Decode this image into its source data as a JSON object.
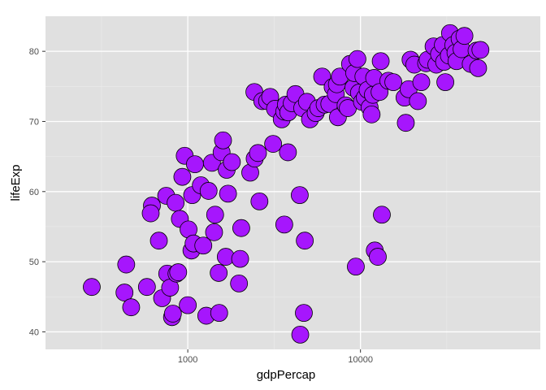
{
  "chart_data": {
    "type": "scatter",
    "title": "",
    "xlabel": "gdpPercap",
    "ylabel": "lifeExp",
    "x_scale": "log10",
    "xlim": [
      150,
      110000
    ],
    "ylim": [
      37.5,
      85
    ],
    "x_ticks": [
      1000,
      10000
    ],
    "x_tick_labels": [
      "1000",
      "10000"
    ],
    "y_ticks": [
      40,
      50,
      60,
      70,
      80
    ],
    "y_tick_labels": [
      "40",
      "50",
      "60",
      "70",
      "80"
    ],
    "grid": true,
    "legend": "none",
    "colors": {
      "panel_background": "#e0e0e0",
      "grid_major": "#ffffff",
      "grid_minor": "#ebebeb",
      "point_fill": "#a616fd",
      "point_stroke": "#000000"
    },
    "points": [
      [
        278,
        46.4
      ],
      [
        430,
        45.6
      ],
      [
        470,
        43.5
      ],
      [
        440,
        49.6
      ],
      [
        580,
        46.4
      ],
      [
        620,
        58.0
      ],
      [
        610,
        56.9
      ],
      [
        680,
        53.0
      ],
      [
        710,
        44.8
      ],
      [
        750,
        59.4
      ],
      [
        760,
        48.3
      ],
      [
        790,
        46.3
      ],
      [
        810,
        42.1
      ],
      [
        820,
        42.6
      ],
      [
        860,
        48.3
      ],
      [
        880,
        48.5
      ],
      [
        850,
        58.4
      ],
      [
        900,
        56.1
      ],
      [
        930,
        62.1
      ],
      [
        960,
        65.1
      ],
      [
        1000,
        43.8
      ],
      [
        1010,
        54.6
      ],
      [
        1050,
        51.6
      ],
      [
        1080,
        52.6
      ],
      [
        1060,
        59.5
      ],
      [
        1100,
        63.9
      ],
      [
        1190,
        60.9
      ],
      [
        1230,
        52.3
      ],
      [
        1280,
        42.3
      ],
      [
        1320,
        60.1
      ],
      [
        1380,
        64.1
      ],
      [
        1420,
        54.2
      ],
      [
        1440,
        56.7
      ],
      [
        1510,
        48.4
      ],
      [
        1520,
        42.7
      ],
      [
        1570,
        65.6
      ],
      [
        1600,
        67.3
      ],
      [
        1660,
        50.7
      ],
      [
        1680,
        63.1
      ],
      [
        1710,
        59.7
      ],
      [
        1800,
        64.2
      ],
      [
        1980,
        46.9
      ],
      [
        2010,
        50.4
      ],
      [
        2040,
        54.8
      ],
      [
        2300,
        62.7
      ],
      [
        2440,
        64.7
      ],
      [
        2550,
        65.5
      ],
      [
        2600,
        58.6
      ],
      [
        2430,
        74.2
      ],
      [
        2700,
        72.9
      ],
      [
        2880,
        72.9
      ],
      [
        3000,
        73.5
      ],
      [
        3120,
        66.8
      ],
      [
        3200,
        71.8
      ],
      [
        3500,
        70.3
      ],
      [
        3620,
        55.3
      ],
      [
        3620,
        71.4
      ],
      [
        3700,
        72.4
      ],
      [
        3820,
        71.3
      ],
      [
        3800,
        65.6
      ],
      [
        4000,
        72.6
      ],
      [
        4200,
        73.9
      ],
      [
        4450,
        59.5
      ],
      [
        4480,
        39.6
      ],
      [
        4600,
        71.9
      ],
      [
        4700,
        42.7
      ],
      [
        4760,
        53.0
      ],
      [
        4900,
        72.8
      ],
      [
        5100,
        70.3
      ],
      [
        5500,
        71.2
      ],
      [
        5700,
        71.9
      ],
      [
        6000,
        76.4
      ],
      [
        6200,
        72.4
      ],
      [
        6600,
        72.5
      ],
      [
        6900,
        74.9
      ],
      [
        7200,
        73.9
      ],
      [
        7300,
        75.3
      ],
      [
        7400,
        70.6
      ],
      [
        7600,
        76.4
      ],
      [
        8200,
        72.3
      ],
      [
        8450,
        71.9
      ],
      [
        8700,
        78.2
      ],
      [
        9100,
        74.8
      ],
      [
        9200,
        76.9
      ],
      [
        9400,
        49.3
      ],
      [
        9600,
        78.9
      ],
      [
        9800,
        74.1
      ],
      [
        10200,
        72.8
      ],
      [
        10400,
        76.4
      ],
      [
        10600,
        73.4
      ],
      [
        11000,
        74.5
      ],
      [
        11300,
        72.0
      ],
      [
        11600,
        71.0
      ],
      [
        11800,
        73.8
      ],
      [
        12000,
        76.2
      ],
      [
        12100,
        51.6
      ],
      [
        12600,
        50.7
      ],
      [
        12900,
        74.2
      ],
      [
        13100,
        78.6
      ],
      [
        13300,
        56.7
      ],
      [
        14500,
        75.8
      ],
      [
        15500,
        75.6
      ],
      [
        18000,
        73.4
      ],
      [
        18300,
        69.8
      ],
      [
        19000,
        74.6
      ],
      [
        19500,
        78.8
      ],
      [
        20500,
        78.1
      ],
      [
        21500,
        72.9
      ],
      [
        22500,
        75.6
      ],
      [
        24000,
        78.3
      ],
      [
        24500,
        78.8
      ],
      [
        26500,
        80.7
      ],
      [
        27500,
        78.1
      ],
      [
        28500,
        79.6
      ],
      [
        30000,
        80.9
      ],
      [
        30500,
        78.5
      ],
      [
        31000,
        75.6
      ],
      [
        32500,
        79.4
      ],
      [
        33000,
        82.6
      ],
      [
        34500,
        80.9
      ],
      [
        35500,
        79.8
      ],
      [
        36000,
        78.6
      ],
      [
        37500,
        81.8
      ],
      [
        38500,
        80.3
      ],
      [
        40000,
        82.2
      ],
      [
        43500,
        78.2
      ],
      [
        47000,
        80.1
      ],
      [
        48000,
        77.6
      ],
      [
        49500,
        80.2
      ]
    ]
  }
}
